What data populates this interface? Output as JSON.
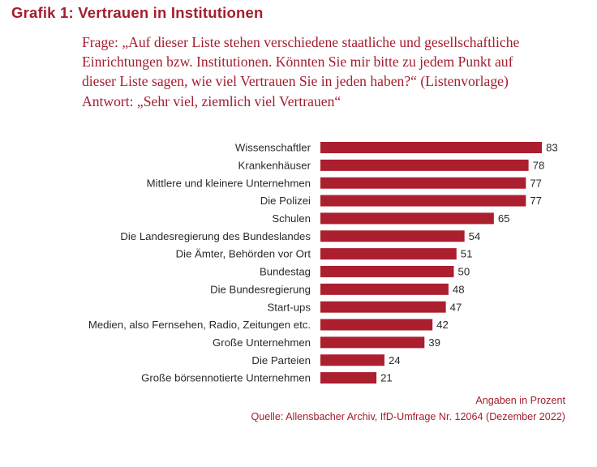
{
  "chart_data": {
    "type": "bar",
    "orientation": "horizontal",
    "title": "Grafik 1: Vertrauen in Institutionen",
    "question_lines": [
      "Frage: „Auf dieser Liste stehen verschiedene staatliche und gesellschaftliche",
      "Einrichtungen bzw. Institutionen. Könnten Sie mir bitte zu jedem Punkt auf",
      "dieser Liste sagen, wie viel Vertrauen Sie in jeden haben?“ (Listenvorlage)",
      "Antwort: „Sehr viel, ziemlich viel Vertrauen“"
    ],
    "categories": [
      "Wissenschaftler",
      "Krankenhäuser",
      "Mittlere und kleinere Unternehmen",
      "Die Polizei",
      "Schulen",
      "Die Landesregierung des Bundeslandes",
      "Die Ämter, Behörden vor Ort",
      "Bundestag",
      "Die Bundesregierung",
      "Start-ups",
      "Medien, also Fernsehen, Radio, Zeitungen etc.",
      "Große Unternehmen",
      "Die Parteien",
      "Große börsennotierte Unternehmen"
    ],
    "values": [
      83,
      78,
      77,
      77,
      65,
      54,
      51,
      50,
      48,
      47,
      42,
      39,
      24,
      21
    ],
    "xlabel": "",
    "ylabel": "",
    "xlim": [
      0,
      100
    ],
    "grid": false,
    "data_labels": true,
    "unit_note": "Angaben in Prozent",
    "source": "Quelle: Allensbacher Archiv, IfD-Umfrage Nr. 12064 (Dezember 2022)",
    "colors": {
      "bar": "#ab1f2f",
      "text_accent": "#a41d2e",
      "label": "#2a2a2a"
    }
  }
}
